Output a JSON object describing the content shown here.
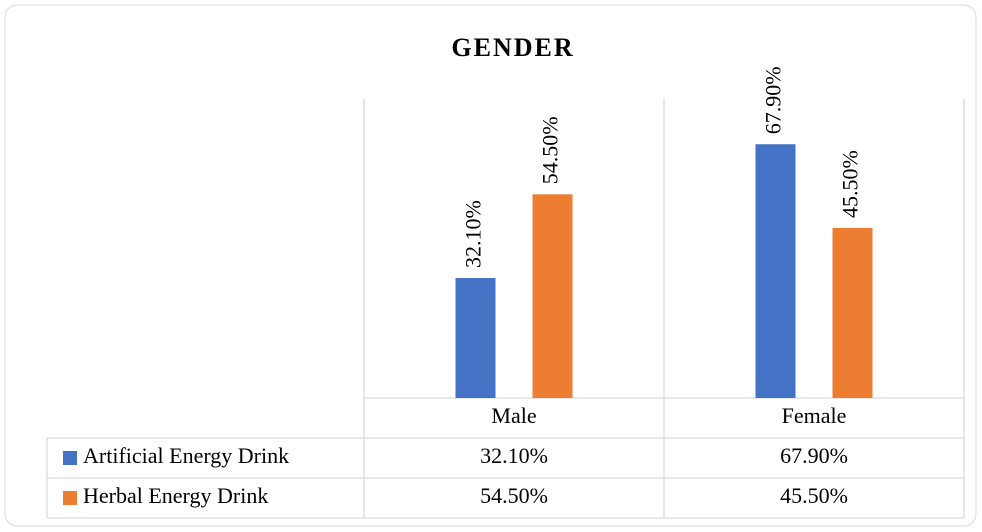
{
  "chart_data": {
    "type": "bar",
    "title": "GENDER",
    "categories": [
      "Male",
      "Female"
    ],
    "series": [
      {
        "name": "Artificial Energy Drink",
        "color": "#4472c4",
        "values": [
          32.1,
          67.9
        ],
        "value_labels": [
          "32.10%",
          "67.90%"
        ]
      },
      {
        "name": "Herbal Energy Drink",
        "color": "#ed7d31",
        "values": [
          54.5,
          45.5
        ],
        "value_labels": [
          "54.50%",
          "45.50%"
        ]
      }
    ],
    "ylim": [
      0,
      80
    ],
    "data_table": true
  }
}
